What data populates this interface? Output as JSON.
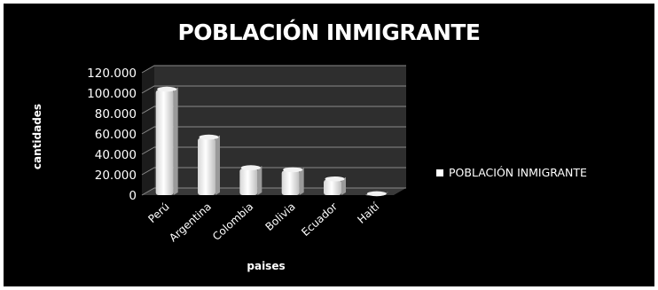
{
  "chart_data": {
    "type": "bar",
    "title": "POBLACIÓN INMIGRANTE",
    "xlabel": "paises",
    "ylabel": "cantidades",
    "categories": [
      "Perú",
      "Argentina",
      "Colombia",
      "Bolivia",
      "Ecuador",
      "Haití"
    ],
    "series": [
      {
        "name": "POBLACIÓN INMIGRANTE",
        "values": [
          103000,
          56000,
          26000,
          24000,
          15000,
          500
        ]
      }
    ],
    "ylim": [
      0,
      120000
    ],
    "y_ticks": [
      "0",
      "20.000",
      "40.000",
      "60.000",
      "80.000",
      "100.000",
      "120.000"
    ],
    "y_tick_values": [
      0,
      20000,
      40000,
      60000,
      80000,
      100000,
      120000
    ],
    "grid": true,
    "legend_position": "right",
    "colors": {
      "background": "#000000",
      "bar": "#ffffff",
      "plot_back_wall": "#2e2e2e",
      "gridline": "#8a8a8a",
      "text": "#ffffff"
    }
  }
}
